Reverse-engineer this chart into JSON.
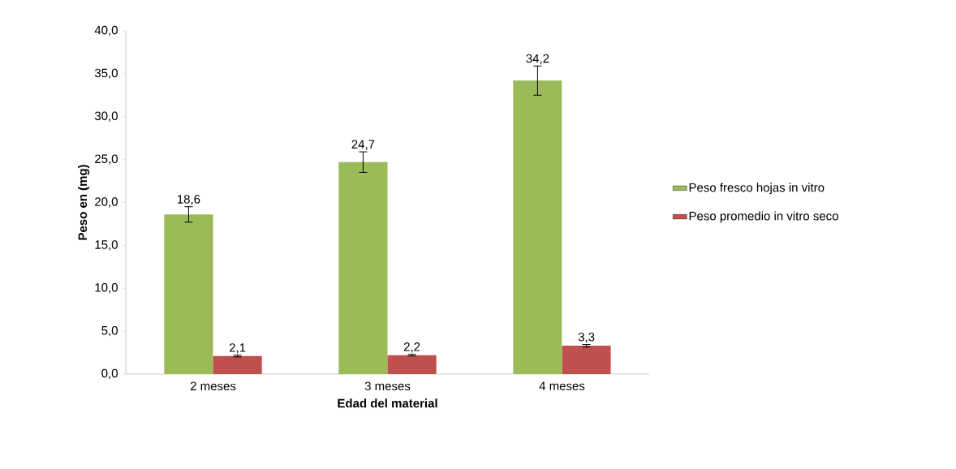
{
  "chart_data": {
    "type": "bar",
    "xlabel": "Edad del material",
    "ylabel": "Peso en (mg)",
    "categories": [
      "2 meses",
      "3 meses",
      "4 meses"
    ],
    "series": [
      {
        "name": "Peso fresco hojas in vitro",
        "color": "#9bbb59",
        "values": [
          18.6,
          24.7,
          34.2
        ],
        "errors": [
          0.9,
          1.2,
          1.7
        ],
        "value_labels": [
          "18,6",
          "24,7",
          "34,2"
        ]
      },
      {
        "name": "Peso promedio in vitro seco",
        "color": "#c0504d",
        "values": [
          2.1,
          2.2,
          3.3
        ],
        "errors": [
          0.1,
          0.1,
          0.15
        ],
        "value_labels": [
          "2,1",
          "2,2",
          "3,3"
        ]
      }
    ],
    "ylim": [
      0,
      40
    ],
    "yticks": [
      {
        "value": 0,
        "label": "0,0"
      },
      {
        "value": 5,
        "label": "5,0"
      },
      {
        "value": 10,
        "label": "10,0"
      },
      {
        "value": 15,
        "label": "15,0"
      },
      {
        "value": 20,
        "label": "20,0"
      },
      {
        "value": 25,
        "label": "25,0"
      },
      {
        "value": 30,
        "label": "30,0"
      },
      {
        "value": 35,
        "label": "35,0"
      },
      {
        "value": 40,
        "label": "40,0"
      }
    ],
    "grid": false,
    "legend": "right"
  }
}
